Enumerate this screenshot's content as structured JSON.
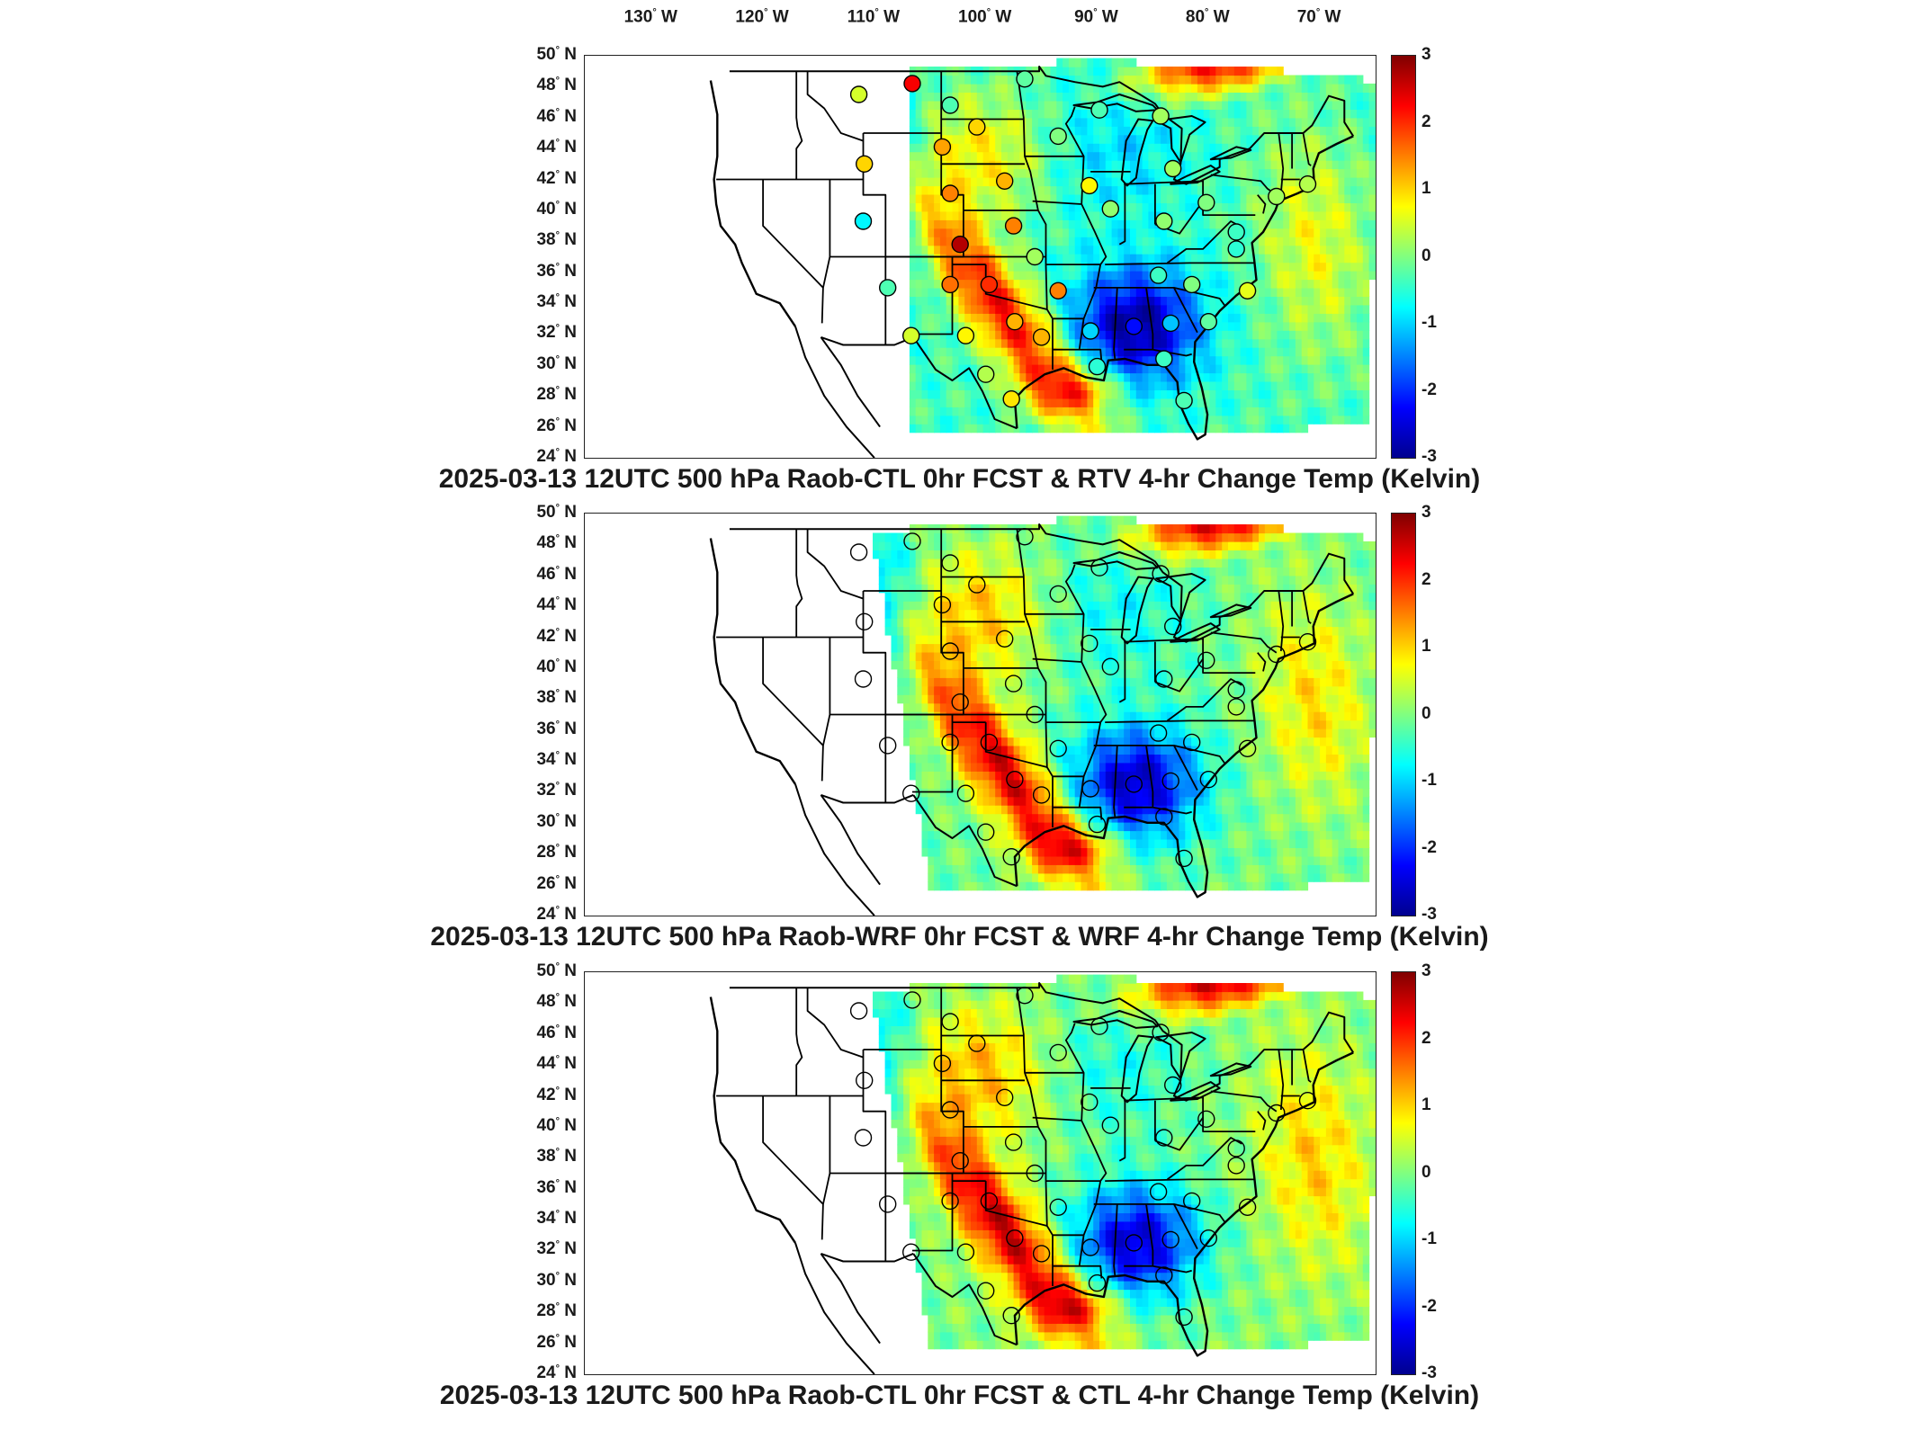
{
  "longitude_ticks": [
    {
      "lon": -130,
      "label": "130",
      "hemi": "W"
    },
    {
      "lon": -120,
      "label": "120",
      "hemi": "W"
    },
    {
      "lon": -110,
      "label": "110",
      "hemi": "W"
    },
    {
      "lon": -100,
      "label": "100",
      "hemi": "W"
    },
    {
      "lon": -90,
      "label": "90",
      "hemi": "W"
    },
    {
      "lon": -80,
      "label": "80",
      "hemi": "W"
    },
    {
      "lon": -70,
      "label": "70",
      "hemi": "W"
    }
  ],
  "latitude_ticks": [
    {
      "lat": 50,
      "label": "50",
      "hemi": "N"
    },
    {
      "lat": 48,
      "label": "48",
      "hemi": "N"
    },
    {
      "lat": 46,
      "label": "46",
      "hemi": "N"
    },
    {
      "lat": 44,
      "label": "44",
      "hemi": "N"
    },
    {
      "lat": 42,
      "label": "42",
      "hemi": "N"
    },
    {
      "lat": 40,
      "label": "40",
      "hemi": "N"
    },
    {
      "lat": 38,
      "label": "38",
      "hemi": "N"
    },
    {
      "lat": 36,
      "label": "36",
      "hemi": "N"
    },
    {
      "lat": 34,
      "label": "34",
      "hemi": "N"
    },
    {
      "lat": 32,
      "label": "32",
      "hemi": "N"
    },
    {
      "lat": 30,
      "label": "30",
      "hemi": "N"
    },
    {
      "lat": 28,
      "label": "28",
      "hemi": "N"
    },
    {
      "lat": 26,
      "label": "26",
      "hemi": "N"
    },
    {
      "lat": 24,
      "label": "24",
      "hemi": "N"
    }
  ],
  "colorbar": {
    "min": -3,
    "max": 3,
    "ticks": [
      "3",
      "2",
      "1",
      "0",
      "-1",
      "-2",
      "-3"
    ],
    "colormap": [
      "#00008f",
      "#0000ff",
      "#0080ff",
      "#00ffff",
      "#80ff80",
      "#ffff00",
      "#ff8000",
      "#ff0000",
      "#800000"
    ]
  },
  "panels": [
    {
      "title": "2025-03-13 12UTC 500 hPa Raob-CTL 0hr FCST & RTV 4-hr Change Temp (Kelvin)",
      "raob_fill": "values",
      "field_style": "rtv"
    },
    {
      "title": "2025-03-13 12UTC 500 hPa Raob-WRF 0hr FCST & WRF 4-hr Change Temp (Kelvin)",
      "raob_fill": "hollow",
      "field_style": "wrf"
    },
    {
      "title": "2025-03-13 12UTC 500 hPa Raob-CTL 0hr FCST & CTL 4-hr Change Temp (Kelvin)",
      "raob_fill": "hollow",
      "field_style": "ctl"
    }
  ],
  "raob_stations": [
    {
      "lon": -111.4,
      "lat": 47.5,
      "value": 0.5
    },
    {
      "lon": -106.6,
      "lat": 48.2,
      "value": 2.3
    },
    {
      "lon": -110.9,
      "lat": 43.0,
      "value": 1.0
    },
    {
      "lon": -111.0,
      "lat": 39.3,
      "value": -0.8
    },
    {
      "lon": -108.8,
      "lat": 35.0,
      "value": -0.3
    },
    {
      "lon": -106.7,
      "lat": 31.9,
      "value": 0.5
    },
    {
      "lon": -103.2,
      "lat": 46.8,
      "value": -0.3
    },
    {
      "lon": -100.8,
      "lat": 45.4,
      "value": 1.0
    },
    {
      "lon": -103.9,
      "lat": 44.1,
      "value": 1.3
    },
    {
      "lon": -103.2,
      "lat": 41.1,
      "value": 1.5
    },
    {
      "lon": -98.3,
      "lat": 41.9,
      "value": 1.2
    },
    {
      "lon": -102.3,
      "lat": 37.8,
      "value": 2.7
    },
    {
      "lon": -103.2,
      "lat": 35.2,
      "value": 1.6
    },
    {
      "lon": -101.8,
      "lat": 31.9,
      "value": 0.8
    },
    {
      "lon": -99.7,
      "lat": 35.2,
      "value": 2.0
    },
    {
      "lon": -97.4,
      "lat": 32.8,
      "value": 1.2
    },
    {
      "lon": -97.5,
      "lat": 39.0,
      "value": 1.5
    },
    {
      "lon": -95.6,
      "lat": 37.0,
      "value": 0.2
    },
    {
      "lon": -93.5,
      "lat": 44.8,
      "value": 0.0
    },
    {
      "lon": -96.5,
      "lat": 48.5,
      "value": -0.2
    },
    {
      "lon": -89.8,
      "lat": 46.5,
      "value": -0.3
    },
    {
      "lon": -84.3,
      "lat": 46.1,
      "value": 0.2
    },
    {
      "lon": -90.7,
      "lat": 41.6,
      "value": 0.8
    },
    {
      "lon": -88.8,
      "lat": 40.1,
      "value": 0.1
    },
    {
      "lon": -83.2,
      "lat": 42.7,
      "value": 0.2
    },
    {
      "lon": -84.0,
      "lat": 39.3,
      "value": 0.1
    },
    {
      "lon": -80.2,
      "lat": 40.5,
      "value": 0.0
    },
    {
      "lon": -93.5,
      "lat": 34.8,
      "value": 1.5
    },
    {
      "lon": -95.0,
      "lat": 31.8,
      "value": 1.2
    },
    {
      "lon": -90.6,
      "lat": 32.2,
      "value": -1.0
    },
    {
      "lon": -86.7,
      "lat": 32.5,
      "value": -2.2
    },
    {
      "lon": -84.5,
      "lat": 35.8,
      "value": -0.4
    },
    {
      "lon": -80.0,
      "lat": 32.8,
      "value": -0.2
    },
    {
      "lon": -84.0,
      "lat": 30.4,
      "value": -0.4
    },
    {
      "lon": -83.4,
      "lat": 32.7,
      "value": -1.1
    },
    {
      "lon": -81.5,
      "lat": 35.2,
      "value": 0.0
    },
    {
      "lon": -77.5,
      "lat": 38.6,
      "value": -0.4
    },
    {
      "lon": -76.5,
      "lat": 34.8,
      "value": 0.6
    },
    {
      "lon": -73.9,
      "lat": 40.9,
      "value": 0.2
    },
    {
      "lon": -71.1,
      "lat": 41.7,
      "value": 0.3
    },
    {
      "lon": -77.5,
      "lat": 37.5,
      "value": -0.5
    },
    {
      "lon": -82.2,
      "lat": 27.7,
      "value": -0.3
    },
    {
      "lon": -97.7,
      "lat": 27.8,
      "value": 0.9
    },
    {
      "lon": -100.0,
      "lat": 29.4,
      "value": 0.3
    },
    {
      "lon": -90.0,
      "lat": 29.9,
      "value": -0.5
    }
  ]
}
